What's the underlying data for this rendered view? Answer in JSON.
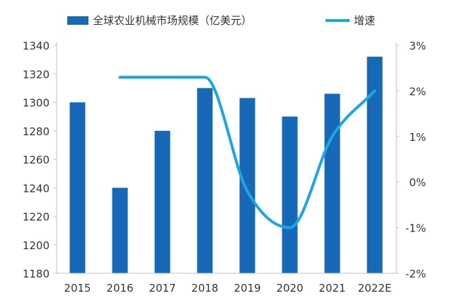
{
  "chart_data": {
    "type": "bar",
    "categories": [
      "2015",
      "2016",
      "2017",
      "2018",
      "2019",
      "2020",
      "2021",
      "2022E"
    ],
    "series": [
      {
        "name": "全球农业机械市场规模（亿美元）",
        "type": "bar",
        "axis": "left",
        "values": [
          1300,
          1240,
          1280,
          1310,
          1303,
          1290,
          1306,
          1332
        ]
      },
      {
        "name": "增速",
        "type": "line",
        "axis": "right",
        "smooth": true,
        "values": [
          null,
          2.3,
          2.3,
          2.3,
          -0.2,
          -1.0,
          1.0,
          2.0
        ]
      }
    ],
    "y_left": {
      "min": 1180,
      "max": 1340,
      "ticks": [
        1180,
        1200,
        1220,
        1240,
        1260,
        1280,
        1300,
        1320,
        1340
      ]
    },
    "y_right": {
      "min": -2,
      "max": 3,
      "ticks": [
        "-2%",
        "-1%",
        "0%",
        "1%",
        "2%",
        "3%"
      ]
    },
    "legend_position": "top",
    "colors": {
      "bar": "#1769B8",
      "line": "#1CA6E6",
      "axis": "#bfbfbf",
      "text": "#333333"
    }
  }
}
